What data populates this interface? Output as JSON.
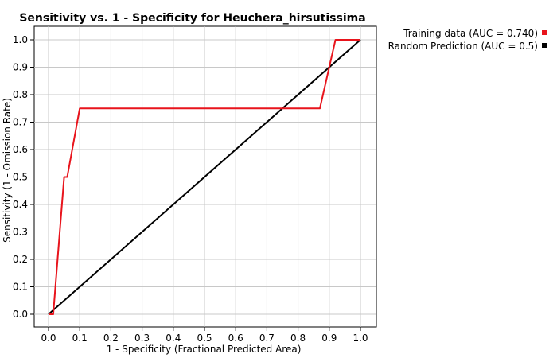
{
  "chart_data": {
    "type": "line",
    "title": "Sensitivity vs. 1 - Specificity for Heuchera_hirsutissima",
    "xlabel": "1 - Specificity  (Fractional Predicted Area)",
    "ylabel": "Sensitivity  (1 - Omission Rate)",
    "xlim": [
      0.0,
      1.0
    ],
    "ylim": [
      0.0,
      1.0
    ],
    "x_ticks": [
      "0.0",
      "0.1",
      "0.2",
      "0.3",
      "0.4",
      "0.5",
      "0.6",
      "0.7",
      "0.8",
      "0.9",
      "1.0"
    ],
    "y_ticks": [
      "0.0",
      "0.1",
      "0.2",
      "0.3",
      "0.4",
      "0.5",
      "0.6",
      "0.7",
      "0.8",
      "0.9",
      "1.0"
    ],
    "grid": true,
    "legend_position": "top-right, outside plot",
    "series": [
      {
        "name": "Training data (AUC = 0.740)",
        "color": "#e8141c",
        "x": [
          0.0,
          0.015,
          0.05,
          0.06,
          0.1,
          0.87,
          0.92,
          1.0
        ],
        "y": [
          0.0,
          0.0,
          0.5,
          0.5,
          0.75,
          0.75,
          1.0,
          1.0
        ]
      },
      {
        "name": "Random Prediction (AUC = 0.5)",
        "color": "#000000",
        "x": [
          0.0,
          1.0
        ],
        "y": [
          0.0,
          1.0
        ]
      }
    ]
  }
}
